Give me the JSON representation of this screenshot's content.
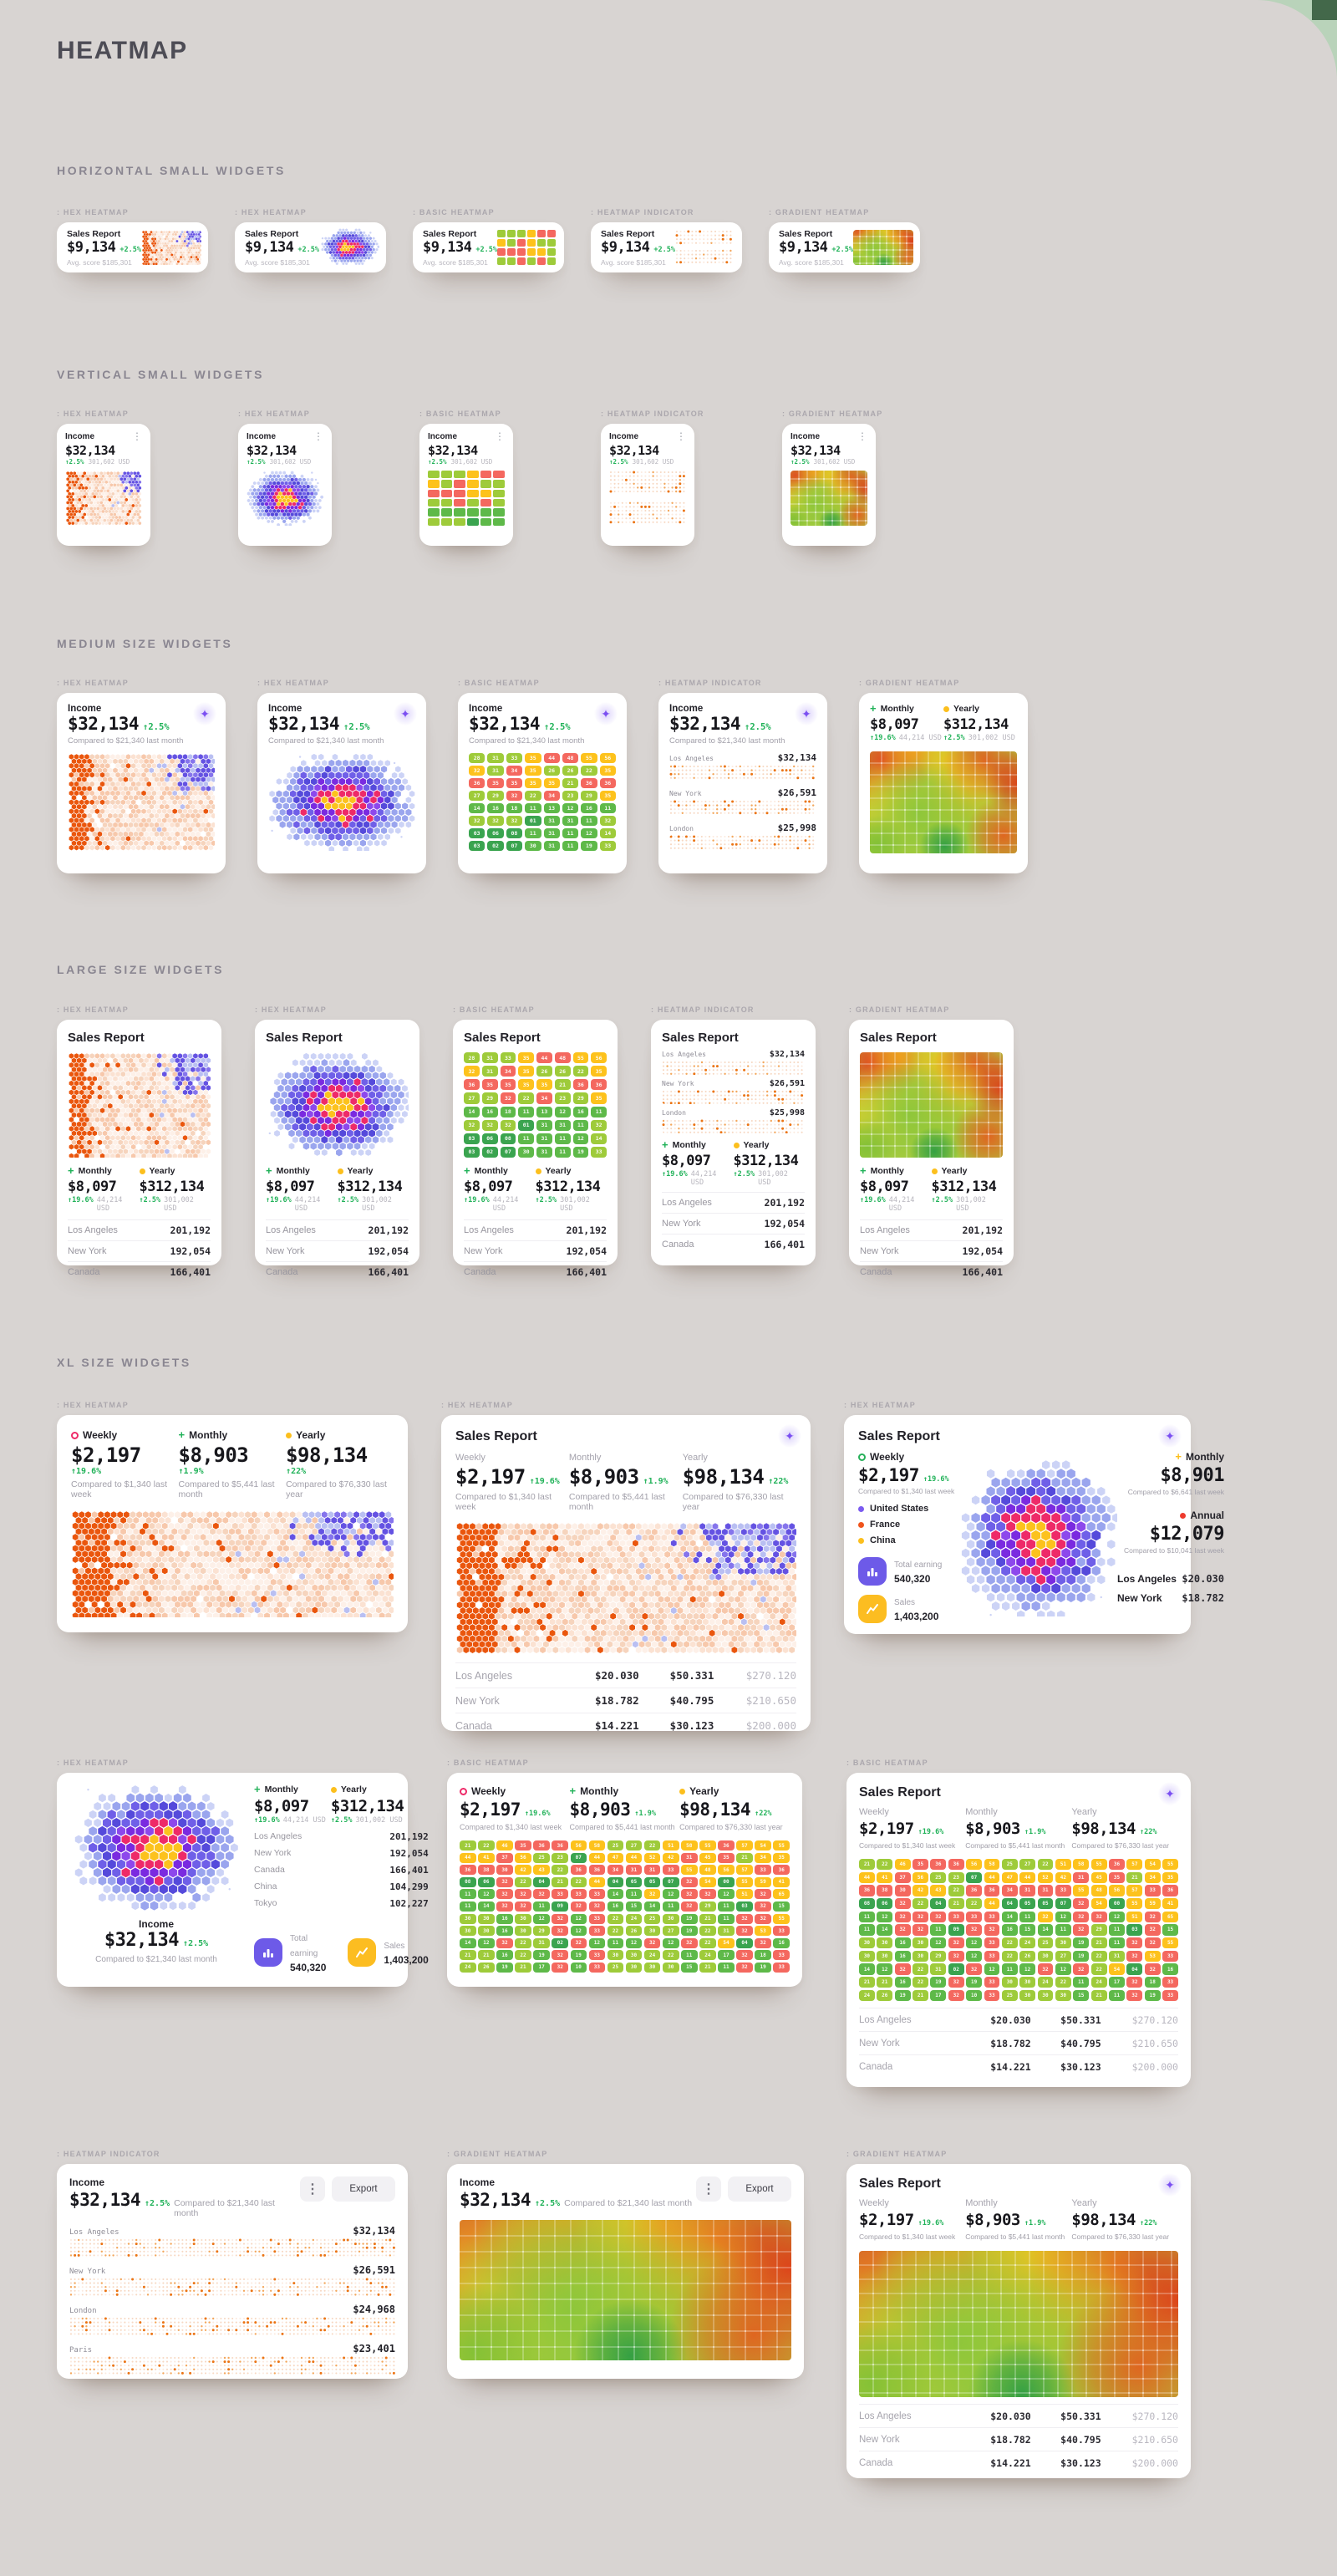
{
  "page": {
    "title": "HEATMAP"
  },
  "sections": {
    "h_small": "HORIZONTAL SMALL WIDGETS",
    "v_small": "VERTICAL SMALL WIDGETS",
    "medium": "MEDIUM SIZE WIDGETS",
    "large": "LARGE SIZE WIDGETS",
    "xl": "XL SIZE WIDGETS"
  },
  "tags": {
    "hex": ": HEX HEATMAP",
    "basic": ": BASIC HEATMAP",
    "indicator": ": HEATMAP INDICATOR",
    "gradient": ": GRADIENT HEATMAP"
  },
  "small_h": {
    "title": "Sales Report",
    "value": "$9,134",
    "delta": "+2.5%",
    "sub": "Avg. score $185,301"
  },
  "small_v": {
    "title": "Income",
    "value": "$32,134",
    "delta": "↑2.5%",
    "sub": "301,602 USD",
    "menu": "⋮"
  },
  "medium": {
    "title": "Income",
    "value": "$32,134",
    "delta": "↑2.5%",
    "compare": "Compared to $21,340 last month"
  },
  "sales_title": "Sales Report",
  "stats": {
    "weekly": {
      "label": "Weekly",
      "value": "$2,197",
      "delta": "↑19.6%",
      "compare": "Compared to $1,340 last week"
    },
    "monthly": {
      "label": "Monthly",
      "value": "$8,903",
      "delta": "↑1.9%",
      "compare": "Compared to $5,441 last month"
    },
    "yearly": {
      "label": "Yearly",
      "value": "$98,134",
      "delta": "↑22%",
      "compare": "Compared to $76,330 last year"
    },
    "monthly_sm": {
      "label": "Monthly",
      "value": "$8,097",
      "delta": "↑19.6%",
      "sub": "44,214 USD"
    },
    "yearly_sm": {
      "label": "Yearly",
      "value": "$312,134",
      "delta": "↑2.5%",
      "sub": "301,002 USD"
    },
    "monthly2": {
      "label": "Monthly",
      "value": "$8,901",
      "compare": "Compared to $6,641 last week"
    },
    "annual": {
      "label": "Annual",
      "value": "$12,079",
      "compare": "Compared to $10,041 last week"
    }
  },
  "indicator_rows": [
    {
      "city": "Los Angeles",
      "value": "$32,134"
    },
    {
      "city": "New York",
      "value": "$26,591"
    },
    {
      "city": "London",
      "value": "$25,998"
    }
  ],
  "indicator_rows_xl": [
    {
      "city": "Los Angeles",
      "value": "$32,134"
    },
    {
      "city": "New York",
      "value": "$26,591"
    },
    {
      "city": "London",
      "value": "$24,968"
    },
    {
      "city": "Paris",
      "value": "$23,401"
    }
  ],
  "city_table": [
    {
      "city": "Los Angeles",
      "value": "201,192"
    },
    {
      "city": "New York",
      "value": "192,054"
    },
    {
      "city": "Canada",
      "value": "166,401"
    }
  ],
  "city_table_xl": [
    {
      "city": "Los Angeles",
      "v1": "$20.030",
      "v2": "$50.331",
      "v3": "$270.120"
    },
    {
      "city": "New York",
      "v1": "$18.782",
      "v2": "$40.795",
      "v3": "$210.650"
    },
    {
      "city": "Canada",
      "v1": "$14.221",
      "v2": "$30.123",
      "v3": "$200.000"
    }
  ],
  "xl3": {
    "legend": [
      {
        "label": "United States",
        "color": "#7b5bf0"
      },
      {
        "label": "France",
        "color": "#f0541c"
      },
      {
        "label": "China",
        "color": "#fcbf1d"
      }
    ],
    "chips": [
      {
        "label": "Total earning",
        "value": "540,320"
      },
      {
        "label": "Sales",
        "value": "1,403,200"
      }
    ],
    "mini_table": [
      {
        "city": "Los Angeles",
        "value": "$20.030"
      },
      {
        "city": "New York",
        "value": "$18.782"
      }
    ]
  },
  "xl4_list": [
    {
      "city": "Los Angeles",
      "value": "201,192"
    },
    {
      "city": "New York",
      "value": "192,054"
    },
    {
      "city": "Canada",
      "value": "166,401"
    },
    {
      "city": "China",
      "value": "104,299"
    },
    {
      "city": "Tokyo",
      "value": "102,227"
    }
  ],
  "buttons": {
    "export": "Export",
    "menu": "⋮"
  },
  "accents": {
    "green": "#21b259",
    "purple": "#6d5ae8",
    "yellow": "#fcbd21",
    "red": "#ee3b2e",
    "orange": "#ea560d",
    "magenta": "#ee2a68",
    "violet": "#7a2ae0",
    "page_bg": "#d8d4d2",
    "backdrop": "#b9d3ba",
    "corner": "#43684a"
  },
  "palettes": {
    "hex_scatter": {
      "strong": "#ea560d",
      "pale": [
        "#f7c8ab",
        "#fbe2d2",
        "#fdf0e8",
        "#f6d4bd"
      ],
      "purple": "#6452e2",
      "purple2": "#8574ec",
      "purple_pale": "#b9bff2",
      "lavender": "#d3d7f7"
    },
    "hex_radial": {
      "center": "#fcc21d",
      "ring1": "#ee2a68",
      "ring2": "#7a2ae0",
      "ring2b": "#8d48ec",
      "ring3": "#6f5fe8",
      "ring3b": "#554adb",
      "ring4": "#9aa5ee",
      "outer": "#ccd3f6"
    },
    "indicator": {
      "strong": "#eb7414",
      "mid": "#f3a75c",
      "pale": "#f7d8c2",
      "faint": "#fbeadf"
    },
    "gradient_base": "#a9cc3f",
    "gradient_blobs": [
      [
        0.06,
        0.1,
        0.34,
        "227,74,31",
        0.95
      ],
      [
        0.3,
        0.02,
        0.24,
        "245,162,27",
        0.85
      ],
      [
        0.55,
        0.06,
        0.2,
        "240,200,31",
        0.8
      ],
      [
        0.8,
        0.12,
        0.28,
        "230,84,29",
        0.88
      ],
      [
        0.99,
        0.33,
        0.24,
        "224,53,23",
        0.9
      ],
      [
        0.63,
        0.4,
        0.3,
        "243,184,29",
        0.7
      ],
      [
        0.1,
        0.52,
        0.3,
        "232,208,42",
        0.85
      ],
      [
        0.33,
        0.62,
        0.38,
        "140,198,58",
        0.95
      ],
      [
        0.62,
        0.75,
        0.3,
        "150,200,55",
        0.7
      ],
      [
        0.9,
        0.8,
        0.26,
        "229,91,29",
        0.9
      ],
      [
        0.52,
        0.95,
        0.17,
        "47,158,68",
        0.95
      ],
      [
        0.03,
        0.92,
        0.2,
        "124,191,53",
        0.85
      ]
    ]
  },
  "chart_data": [
    {
      "type": "heatmap",
      "name": "basic-heatmap-8x8",
      "values": [
        [
          28,
          31,
          33,
          35,
          44,
          48,
          55,
          56
        ],
        [
          32,
          31,
          34,
          35,
          26,
          26,
          22,
          35
        ],
        [
          36,
          35,
          35,
          35,
          35,
          21,
          36,
          36
        ],
        [
          27,
          29,
          32,
          22,
          34,
          23,
          29,
          35
        ],
        [
          14,
          16,
          18,
          11,
          13,
          12,
          16,
          11
        ],
        [
          32,
          32,
          32,
          1,
          31,
          31,
          11,
          32
        ],
        [
          3,
          6,
          8,
          11,
          31,
          11,
          12,
          14
        ],
        [
          3,
          2,
          7,
          30,
          31,
          11,
          19,
          33
        ]
      ],
      "cell_colors": [
        "lllyrryy",
        "ylryllly",
        "rrryylrr",
        "llrlrlly",
        "mmmmmmmm",
        "lllgmmml",
        "gggmmmml",
        "gggmmmml"
      ],
      "palette": {
        "g": "#3aa44f",
        "m": "#5eb949",
        "l": "#9ecb3a",
        "y": "#fdc21c",
        "r": "#f4685f"
      }
    },
    {
      "type": "heatmap",
      "name": "basic-heatmap-18x11",
      "values": [
        [
          21,
          22,
          46,
          35,
          36,
          36,
          56,
          58,
          25,
          27,
          22,
          51,
          58,
          55,
          36,
          57,
          54,
          55
        ],
        [
          44,
          41,
          37,
          56,
          25,
          23,
          7,
          44,
          47,
          44,
          52,
          42,
          31,
          45,
          35,
          21,
          34,
          35
        ],
        [
          36,
          38,
          30,
          42,
          43,
          22,
          36,
          36,
          34,
          31,
          31,
          33,
          55,
          48,
          56,
          57,
          33,
          36
        ],
        [
          8,
          6,
          32,
          22,
          4,
          21,
          22,
          44,
          4,
          5,
          5,
          7,
          32,
          54,
          0,
          55,
          59,
          41
        ],
        [
          11,
          12,
          32,
          32,
          32,
          33,
          33,
          33,
          14,
          11,
          32,
          12,
          32,
          32,
          12,
          51,
          32,
          65
        ],
        [
          11,
          14,
          32,
          32,
          11,
          9,
          32,
          32,
          16,
          15,
          14,
          11,
          32,
          29,
          11,
          3,
          32,
          15
        ],
        [
          30,
          30,
          16,
          30,
          12,
          32,
          12,
          33,
          22,
          24,
          25,
          30,
          19,
          21,
          11,
          32,
          32,
          55
        ],
        [
          30,
          30,
          16,
          30,
          29,
          32,
          12,
          33,
          22,
          26,
          30,
          27,
          19,
          22,
          31,
          32,
          53,
          33
        ],
        [
          14,
          12,
          32,
          22,
          31,
          2,
          32,
          12,
          11,
          12,
          32,
          12,
          32,
          22,
          54,
          4,
          32,
          16
        ],
        [
          21,
          21,
          16,
          22,
          19,
          32,
          19,
          33,
          30,
          30,
          24,
          22,
          11,
          24,
          17,
          32,
          18,
          33
        ],
        [
          24,
          26,
          19,
          21,
          17,
          32,
          10,
          33,
          25,
          30,
          30,
          30,
          15,
          21,
          11,
          32,
          19,
          33
        ]
      ],
      "cell_colors": [
        "llyrrryylllyyyryyy",
        "yyryllgyyyyyryrlyy",
        "rrryylrrrrrryyyyrr",
        "ggrlgllyggggrygyyy",
        "mmrrrrrrmmymrrmyry",
        "mmrrmgrrmmmmrlmgrm",
        "llmlmrmrllllmlmrry",
        "llmllrmrllllmllryr",
        "mmrllgrmmmrmrlygrm",
        "llmlmrmrllllmlmrmr",
        "llmlmrmrllllmlmrmr"
      ],
      "palette": {
        "g": "#3aa44f",
        "m": "#5eb949",
        "l": "#9ecb3a",
        "y": "#fdc21c",
        "r": "#f4685f"
      }
    },
    {
      "type": "heatmap",
      "name": "hex-scatter-decorative",
      "description": "procedural orange/purple hex density field"
    },
    {
      "type": "heatmap",
      "name": "hex-radial-decorative",
      "description": "procedural radial hex cluster: yellow core, magenta ring, purple, lavender"
    },
    {
      "type": "heatmap",
      "name": "gradient-decorative",
      "description": "procedural smooth red/yellow/green gradient heatmap with white grid"
    },
    {
      "type": "heatmap",
      "name": "indicator-dots-decorative",
      "description": "procedural pale/orange dot strips"
    }
  ]
}
